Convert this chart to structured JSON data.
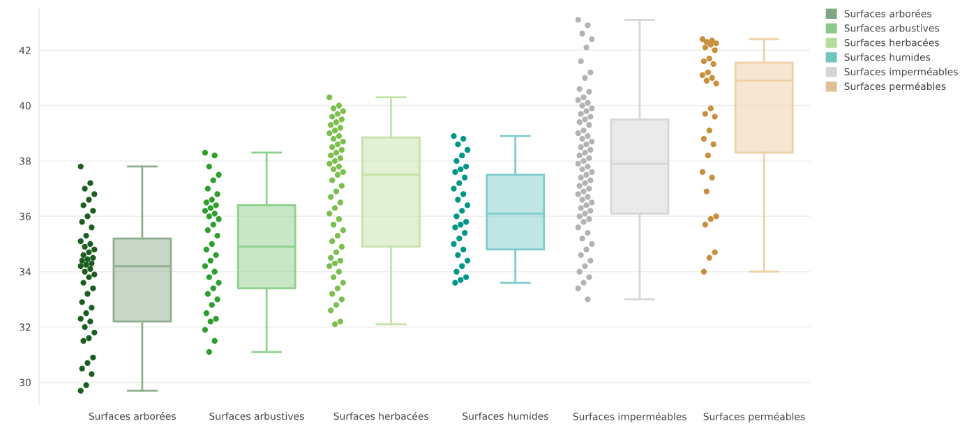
{
  "chart_data": {
    "type": "box",
    "categories": [
      "Surfaces arborées",
      "Surfaces arbustives",
      "Surfaces herbacées",
      "Surfaces humides",
      "Surfaces imperméables",
      "Surfaces perméables"
    ],
    "boxes": [
      {
        "low": 29.7,
        "q1": 32.2,
        "median": 34.2,
        "q3": 35.2,
        "high": 37.8
      },
      {
        "low": 31.1,
        "q1": 33.4,
        "median": 34.9,
        "q3": 36.4,
        "high": 38.3
      },
      {
        "low": 32.1,
        "q1": 34.9,
        "median": 37.5,
        "q3": 38.85,
        "high": 40.3
      },
      {
        "low": 33.6,
        "q1": 34.8,
        "median": 36.1,
        "q3": 37.5,
        "high": 38.9
      },
      {
        "low": 33.0,
        "q1": 36.1,
        "median": 37.9,
        "q3": 39.5,
        "high": 43.1
      },
      {
        "low": 34.0,
        "q1": 38.3,
        "median": 40.9,
        "q3": 41.55,
        "high": 42.4
      }
    ],
    "colors": [
      "#8fae8f",
      "#8fd08f",
      "#c5e3a8",
      "#7fcccc",
      "#d6d6d6",
      "#f0cfa5"
    ],
    "series": [
      {
        "name": "Surfaces arborées",
        "type": "scatter",
        "color": "#1b5e20",
        "x": [
          "Surfaces arborées",
          "Surfaces arborées",
          "Surfaces arborées",
          "Surfaces arborées",
          "Surfaces arborées",
          "Surfaces arborées",
          "Surfaces arborées",
          "Surfaces arborées",
          "Surfaces arborées",
          "Surfaces arborées",
          "Surfaces arborées",
          "Surfaces arborées",
          "Surfaces arborées",
          "Surfaces arborées",
          "Surfaces arborées",
          "Surfaces arborées",
          "Surfaces arborées",
          "Surfaces arborées",
          "Surfaces arborées",
          "Surfaces arborées",
          "Surfaces arborées",
          "Surfaces arborées",
          "Surfaces arborées",
          "Surfaces arborées",
          "Surfaces arborées",
          "Surfaces arborées",
          "Surfaces arborées",
          "Surfaces arborées",
          "Surfaces arborées",
          "Surfaces arborées",
          "Surfaces arborées",
          "Surfaces arborées",
          "Surfaces arborées",
          "Surfaces arborées",
          "Surfaces arborées",
          "Surfaces arborées",
          "Surfaces arborées",
          "Surfaces arborées",
          "Surfaces arborées",
          "Surfaces arborées",
          "Surfaces arborées",
          "Surfaces arborées",
          "Surfaces arborées",
          "Surfaces arborées",
          "Surfaces arborées"
        ],
        "values": [
          37.8,
          37.2,
          37.0,
          36.8,
          36.6,
          36.4,
          36.2,
          36.0,
          35.8,
          35.6,
          35.3,
          35.1,
          35.0,
          34.9,
          34.8,
          34.7,
          34.6,
          34.5,
          34.45,
          34.4,
          34.3,
          34.25,
          34.2,
          34.1,
          34.0,
          33.9,
          33.8,
          33.6,
          33.4,
          33.2,
          32.9,
          32.7,
          32.5,
          32.3,
          32.2,
          32.0,
          31.8,
          31.6,
          31.5,
          30.9,
          30.7,
          30.5,
          30.3,
          29.9,
          29.7
        ]
      },
      {
        "name": "Surfaces arbustives",
        "type": "scatter",
        "color": "#2e9e2e",
        "x": [
          "Surfaces arbustives",
          "Surfaces arbustives",
          "Surfaces arbustives",
          "Surfaces arbustives",
          "Surfaces arbustives",
          "Surfaces arbustives",
          "Surfaces arbustives",
          "Surfaces arbustives",
          "Surfaces arbustives",
          "Surfaces arbustives",
          "Surfaces arbustives",
          "Surfaces arbustives",
          "Surfaces arbustives",
          "Surfaces arbustives",
          "Surfaces arbustives",
          "Surfaces arbustives",
          "Surfaces arbustives",
          "Surfaces arbustives",
          "Surfaces arbustives",
          "Surfaces arbustives",
          "Surfaces arbustives",
          "Surfaces arbustives",
          "Surfaces arbustives",
          "Surfaces arbustives",
          "Surfaces arbustives",
          "Surfaces arbustives",
          "Surfaces arbustives",
          "Surfaces arbustives",
          "Surfaces arbustives",
          "Surfaces arbustives",
          "Surfaces arbustives",
          "Surfaces arbustives",
          "Surfaces arbustives",
          "Surfaces arbustives",
          "Surfaces arbustives",
          "Surfaces arbustives"
        ],
        "values": [
          38.3,
          38.2,
          37.8,
          37.5,
          37.3,
          37.0,
          36.8,
          36.6,
          36.5,
          36.4,
          36.3,
          36.2,
          36.1,
          36.0,
          35.9,
          35.7,
          35.5,
          35.3,
          35.0,
          34.8,
          34.6,
          34.4,
          34.2,
          34.0,
          33.8,
          33.6,
          33.4,
          33.2,
          33.0,
          32.8,
          32.5,
          32.3,
          32.2,
          31.9,
          31.5,
          31.1
        ]
      },
      {
        "name": "Surfaces herbacées",
        "type": "scatter",
        "color": "#7cbf4f",
        "x": [
          "Surfaces herbacées",
          "Surfaces herbacées",
          "Surfaces herbacées",
          "Surfaces herbacées",
          "Surfaces herbacées",
          "Surfaces herbacées",
          "Surfaces herbacées",
          "Surfaces herbacées",
          "Surfaces herbacées",
          "Surfaces herbacées",
          "Surfaces herbacées",
          "Surfaces herbacées",
          "Surfaces herbacées",
          "Surfaces herbacées",
          "Surfaces herbacées",
          "Surfaces herbacées",
          "Surfaces herbacées",
          "Surfaces herbacées",
          "Surfaces herbacées",
          "Surfaces herbacées",
          "Surfaces herbacées",
          "Surfaces herbacées",
          "Surfaces herbacées",
          "Surfaces herbacées",
          "Surfaces herbacées",
          "Surfaces herbacées",
          "Surfaces herbacées",
          "Surfaces herbacées",
          "Surfaces herbacées",
          "Surfaces herbacées",
          "Surfaces herbacées",
          "Surfaces herbacées",
          "Surfaces herbacées",
          "Surfaces herbacées",
          "Surfaces herbacées",
          "Surfaces herbacées",
          "Surfaces herbacées",
          "Surfaces herbacées",
          "Surfaces herbacées",
          "Surfaces herbacées",
          "Surfaces herbacées",
          "Surfaces herbacées",
          "Surfaces herbacées",
          "Surfaces herbacées",
          "Surfaces herbacées",
          "Surfaces herbacées",
          "Surfaces herbacées",
          "Surfaces herbacées",
          "Surfaces herbacées",
          "Surfaces herbacées",
          "Surfaces herbacées",
          "Surfaces herbacées",
          "Surfaces herbacées",
          "Surfaces herbacées",
          "Surfaces herbacées"
        ],
        "values": [
          40.3,
          40.0,
          39.9,
          39.8,
          39.7,
          39.6,
          39.5,
          39.4,
          39.3,
          39.2,
          39.1,
          39.0,
          38.9,
          38.8,
          38.7,
          38.6,
          38.5,
          38.4,
          38.3,
          38.2,
          38.1,
          38.0,
          37.9,
          37.8,
          37.7,
          37.6,
          37.5,
          37.3,
          37.1,
          36.9,
          36.7,
          36.5,
          36.3,
          36.1,
          35.9,
          35.7,
          35.5,
          35.3,
          35.1,
          34.9,
          34.7,
          34.5,
          34.4,
          34.3,
          34.2,
          34.0,
          33.8,
          33.6,
          33.4,
          33.2,
          33.0,
          32.8,
          32.6,
          32.2,
          32.1
        ]
      },
      {
        "name": "Surfaces humides",
        "type": "scatter",
        "color": "#009688",
        "x": [
          "Surfaces humides",
          "Surfaces humides",
          "Surfaces humides",
          "Surfaces humides",
          "Surfaces humides",
          "Surfaces humides",
          "Surfaces humides",
          "Surfaces humides",
          "Surfaces humides",
          "Surfaces humides",
          "Surfaces humides",
          "Surfaces humides",
          "Surfaces humides",
          "Surfaces humides",
          "Surfaces humides",
          "Surfaces humides",
          "Surfaces humides",
          "Surfaces humides",
          "Surfaces humides",
          "Surfaces humides",
          "Surfaces humides",
          "Surfaces humides",
          "Surfaces humides",
          "Surfaces humides",
          "Surfaces humides",
          "Surfaces humides",
          "Surfaces humides",
          "Surfaces humides",
          "Surfaces humides",
          "Surfaces humides",
          "Surfaces humides"
        ],
        "values": [
          38.9,
          38.8,
          38.6,
          38.4,
          38.2,
          38.0,
          37.8,
          37.7,
          37.6,
          37.4,
          37.2,
          37.0,
          36.8,
          36.6,
          36.4,
          36.2,
          36.0,
          35.8,
          35.7,
          35.6,
          35.4,
          35.2,
          35.0,
          34.8,
          34.6,
          34.4,
          34.2,
          34.0,
          33.8,
          33.7,
          33.6
        ]
      },
      {
        "name": "Surfaces imperméables",
        "type": "scatter",
        "color": "#b3b3b3",
        "x": [
          "Surfaces imperméables",
          "Surfaces imperméables",
          "Surfaces imperméables",
          "Surfaces imperméables",
          "Surfaces imperméables",
          "Surfaces imperméables",
          "Surfaces imperméables",
          "Surfaces imperméables",
          "Surfaces imperméables",
          "Surfaces imperméables",
          "Surfaces imperméables",
          "Surfaces imperméables",
          "Surfaces imperméables",
          "Surfaces imperméables",
          "Surfaces imperméables",
          "Surfaces imperméables",
          "Surfaces imperméables",
          "Surfaces imperméables",
          "Surfaces imperméables",
          "Surfaces imperméables",
          "Surfaces imperméables",
          "Surfaces imperméables",
          "Surfaces imperméables",
          "Surfaces imperméables",
          "Surfaces imperméables",
          "Surfaces imperméables",
          "Surfaces imperméables",
          "Surfaces imperméables",
          "Surfaces imperméables",
          "Surfaces imperméables",
          "Surfaces imperméables",
          "Surfaces imperméables",
          "Surfaces imperméables",
          "Surfaces imperméables",
          "Surfaces imperméables",
          "Surfaces imperméables",
          "Surfaces imperméables",
          "Surfaces imperméables",
          "Surfaces imperméables",
          "Surfaces imperméables",
          "Surfaces imperméables",
          "Surfaces imperméables",
          "Surfaces imperméables",
          "Surfaces imperméables",
          "Surfaces imperméables",
          "Surfaces imperméables",
          "Surfaces imperméables",
          "Surfaces imperméables",
          "Surfaces imperméables",
          "Surfaces imperméables",
          "Surfaces imperméables",
          "Surfaces imperméables",
          "Surfaces imperméables",
          "Surfaces imperméables",
          "Surfaces imperméables",
          "Surfaces imperméables",
          "Surfaces imperméables",
          "Surfaces imperméables",
          "Surfaces imperméables",
          "Surfaces imperméables",
          "Surfaces imperméables",
          "Surfaces imperméables",
          "Surfaces imperméables",
          "Surfaces imperméables",
          "Surfaces imperméables",
          "Surfaces imperméables",
          "Surfaces imperméables",
          "Surfaces imperméables"
        ],
        "values": [
          43.1,
          42.9,
          42.6,
          42.4,
          42.1,
          41.6,
          41.2,
          41.0,
          40.6,
          40.5,
          40.3,
          40.2,
          40.1,
          40.0,
          39.9,
          39.8,
          39.7,
          39.6,
          39.5,
          39.4,
          39.3,
          39.1,
          39.0,
          38.9,
          38.8,
          38.7,
          38.6,
          38.5,
          38.4,
          38.3,
          38.2,
          38.1,
          38.0,
          37.9,
          37.8,
          37.7,
          37.6,
          37.5,
          37.4,
          37.3,
          37.2,
          37.1,
          37.0,
          36.9,
          36.8,
          36.7,
          36.6,
          36.5,
          36.4,
          36.3,
          36.2,
          36.1,
          36.0,
          35.9,
          35.8,
          35.6,
          35.4,
          35.2,
          35.0,
          34.8,
          34.6,
          34.4,
          34.2,
          34.0,
          33.8,
          33.6,
          33.4,
          33.0
        ]
      },
      {
        "name": "Surfaces perméables",
        "type": "scatter",
        "color": "#c8903d",
        "x": [
          "Surfaces perméables",
          "Surfaces perméables",
          "Surfaces perméables",
          "Surfaces perméables",
          "Surfaces perméables",
          "Surfaces perméables",
          "Surfaces perméables",
          "Surfaces perméables",
          "Surfaces perméables",
          "Surfaces perméables",
          "Surfaces perméables",
          "Surfaces perméables",
          "Surfaces perméables",
          "Surfaces perméables",
          "Surfaces perméables",
          "Surfaces perméables",
          "Surfaces perméables",
          "Surfaces perméables",
          "Surfaces perméables",
          "Surfaces perméables",
          "Surfaces perméables",
          "Surfaces perméables",
          "Surfaces perméables",
          "Surfaces perméables",
          "Surfaces perméables",
          "Surfaces perméables",
          "Surfaces perméables",
          "Surfaces perméables",
          "Surfaces perméables",
          "Surfaces perméables",
          "Surfaces perméables"
        ],
        "values": [
          42.4,
          42.35,
          42.3,
          42.25,
          42.2,
          42.1,
          42.0,
          41.7,
          41.6,
          41.5,
          41.2,
          41.1,
          41.0,
          40.9,
          40.8,
          39.9,
          39.7,
          39.6,
          39.1,
          38.8,
          38.6,
          38.2,
          37.6,
          37.4,
          36.9,
          36.0,
          35.9,
          35.7,
          34.7,
          34.5,
          34.0
        ]
      }
    ],
    "ylim": [
      29.2,
      43.5
    ],
    "yticks": [
      30,
      32,
      34,
      36,
      38,
      40,
      42
    ],
    "grid": "y",
    "legend": "top right",
    "marker": "circle"
  }
}
